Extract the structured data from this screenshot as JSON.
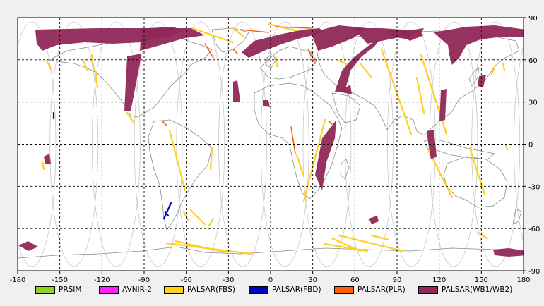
{
  "map": {
    "lon_ticks": [
      "-180",
      "-150",
      "-120",
      "-90",
      "-60",
      "-30",
      "0",
      "30",
      "60",
      "90",
      "120",
      "150",
      "180"
    ],
    "lat_ticks": [
      "90",
      "60",
      "30",
      "0",
      "-30",
      "-60",
      "-90"
    ],
    "lon_range": [
      -180,
      180
    ],
    "lat_range": [
      -90,
      90
    ],
    "grid_interval_deg": 30,
    "grid_style": "dashed",
    "background": "#ffffff",
    "frame_background": "#f0f0f0"
  },
  "legend": {
    "placement": "bottom",
    "items": [
      {
        "label": "PRSIM",
        "color": "#90d020"
      },
      {
        "label": "AVNIR-2",
        "color": "#ff20ff"
      },
      {
        "label": "PALSAR(FBS)",
        "color": "#ffd020"
      },
      {
        "label": "PALSAR(FBD)",
        "color": "#0000c0"
      },
      {
        "label": "PALSAR(PLR)",
        "color": "#ff6010"
      },
      {
        "label": "PALSAR(WB1/WB2)",
        "color": "#902858"
      }
    ]
  }
}
